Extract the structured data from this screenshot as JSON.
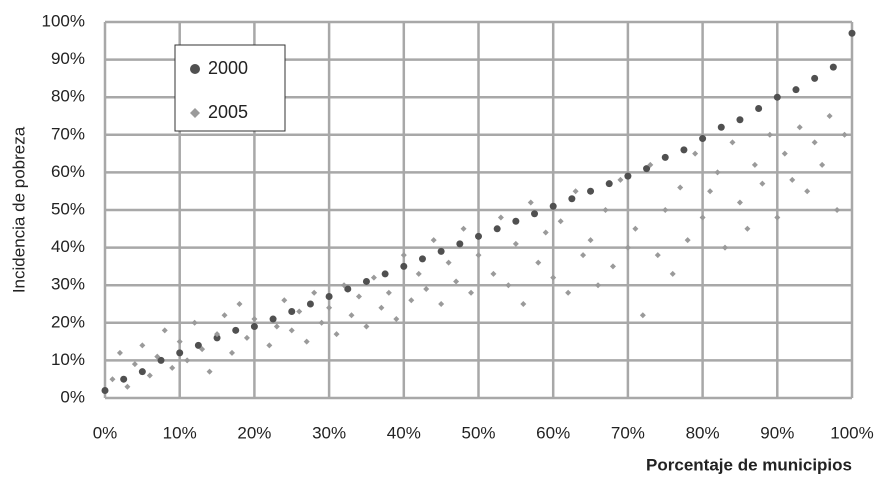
{
  "chart_data": {
    "type": "scatter",
    "x_label": "Porcentaje de municipios",
    "y_label": "Incidencia de pobreza",
    "xlim": [
      0,
      100
    ],
    "ylim": [
      0,
      100
    ],
    "xticks": [
      {
        "value": 0,
        "label": "0%"
      },
      {
        "value": 10,
        "label": "10%"
      },
      {
        "value": 20,
        "label": "20%"
      },
      {
        "value": 30,
        "label": "30%"
      },
      {
        "value": 40,
        "label": "40%"
      },
      {
        "value": 50,
        "label": "50%"
      },
      {
        "value": 60,
        "label": "60%"
      },
      {
        "value": 70,
        "label": "70%"
      },
      {
        "value": 80,
        "label": "80%"
      },
      {
        "value": 90,
        "label": "90%"
      },
      {
        "value": 100,
        "label": "100%"
      }
    ],
    "yticks": [
      {
        "value": 0,
        "label": "0%"
      },
      {
        "value": 10,
        "label": "10%"
      },
      {
        "value": 20,
        "label": "20%"
      },
      {
        "value": 30,
        "label": "30%"
      },
      {
        "value": 40,
        "label": "40%"
      },
      {
        "value": 50,
        "label": "50%"
      },
      {
        "value": 60,
        "label": "60%"
      },
      {
        "value": 70,
        "label": "70%"
      },
      {
        "value": 80,
        "label": "80%"
      },
      {
        "value": 90,
        "label": "90%"
      },
      {
        "value": 100,
        "label": "100%"
      }
    ],
    "grid": true,
    "series": [
      {
        "name": "2000",
        "color": "#505050",
        "marker": "circle",
        "x": [
          0,
          2.5,
          5,
          7.5,
          10,
          12.5,
          15,
          17.5,
          20,
          22.5,
          25,
          27.5,
          30,
          32.5,
          35,
          37.5,
          40,
          42.5,
          45,
          47.5,
          50,
          52.5,
          55,
          57.5,
          60,
          62.5,
          65,
          67.5,
          70,
          72.5,
          75,
          77.5,
          80,
          82.5,
          85,
          87.5,
          90,
          92.5,
          95,
          97.5,
          100
        ],
        "values": [
          2,
          5,
          7,
          10,
          12,
          14,
          16,
          18,
          19,
          21,
          23,
          25,
          27,
          29,
          31,
          33,
          35,
          37,
          39,
          41,
          43,
          45,
          47,
          49,
          51,
          53,
          55,
          57,
          59,
          61,
          64,
          66,
          69,
          72,
          74,
          77,
          80,
          82,
          85,
          88,
          97
        ]
      },
      {
        "name": "2005",
        "color": "#9a9a9a",
        "marker": "diamond",
        "x": [
          1,
          2,
          3,
          4,
          5,
          6,
          7,
          8,
          9,
          10,
          11,
          12,
          13,
          14,
          15,
          16,
          17,
          18,
          19,
          20,
          22,
          23,
          24,
          25,
          26,
          27,
          28,
          29,
          30,
          31,
          32,
          33,
          34,
          35,
          36,
          37,
          38,
          39,
          40,
          41,
          42,
          43,
          44,
          45,
          46,
          47,
          48,
          49,
          50,
          52,
          53,
          54,
          55,
          56,
          57,
          58,
          59,
          60,
          61,
          62,
          63,
          64,
          65,
          66,
          67,
          68,
          69,
          70,
          71,
          72,
          73,
          74,
          75,
          76,
          77,
          78,
          79,
          80,
          81,
          82,
          83,
          84,
          85,
          86,
          87,
          88,
          89,
          90,
          91,
          92,
          93,
          94,
          95,
          96,
          97,
          98,
          99
        ],
        "values": [
          5,
          12,
          3,
          9,
          14,
          6,
          11,
          18,
          8,
          15,
          10,
          20,
          13,
          7,
          17,
          22,
          12,
          25,
          16,
          21,
          14,
          19,
          26,
          18,
          23,
          15,
          28,
          20,
          24,
          17,
          30,
          22,
          27,
          19,
          32,
          24,
          28,
          21,
          38,
          26,
          33,
          29,
          42,
          25,
          36,
          31,
          45,
          28,
          38,
          33,
          48,
          30,
          41,
          25,
          52,
          36,
          44,
          32,
          47,
          28,
          55,
          38,
          42,
          30,
          50,
          35,
          58,
          40,
          45,
          22,
          62,
          38,
          50,
          33,
          56,
          42,
          65,
          48,
          55,
          60,
          40,
          68,
          52,
          45,
          62,
          57,
          70,
          48,
          65,
          58,
          72,
          55,
          68,
          62,
          75,
          50,
          70
        ]
      }
    ],
    "legend": "upper-left"
  }
}
